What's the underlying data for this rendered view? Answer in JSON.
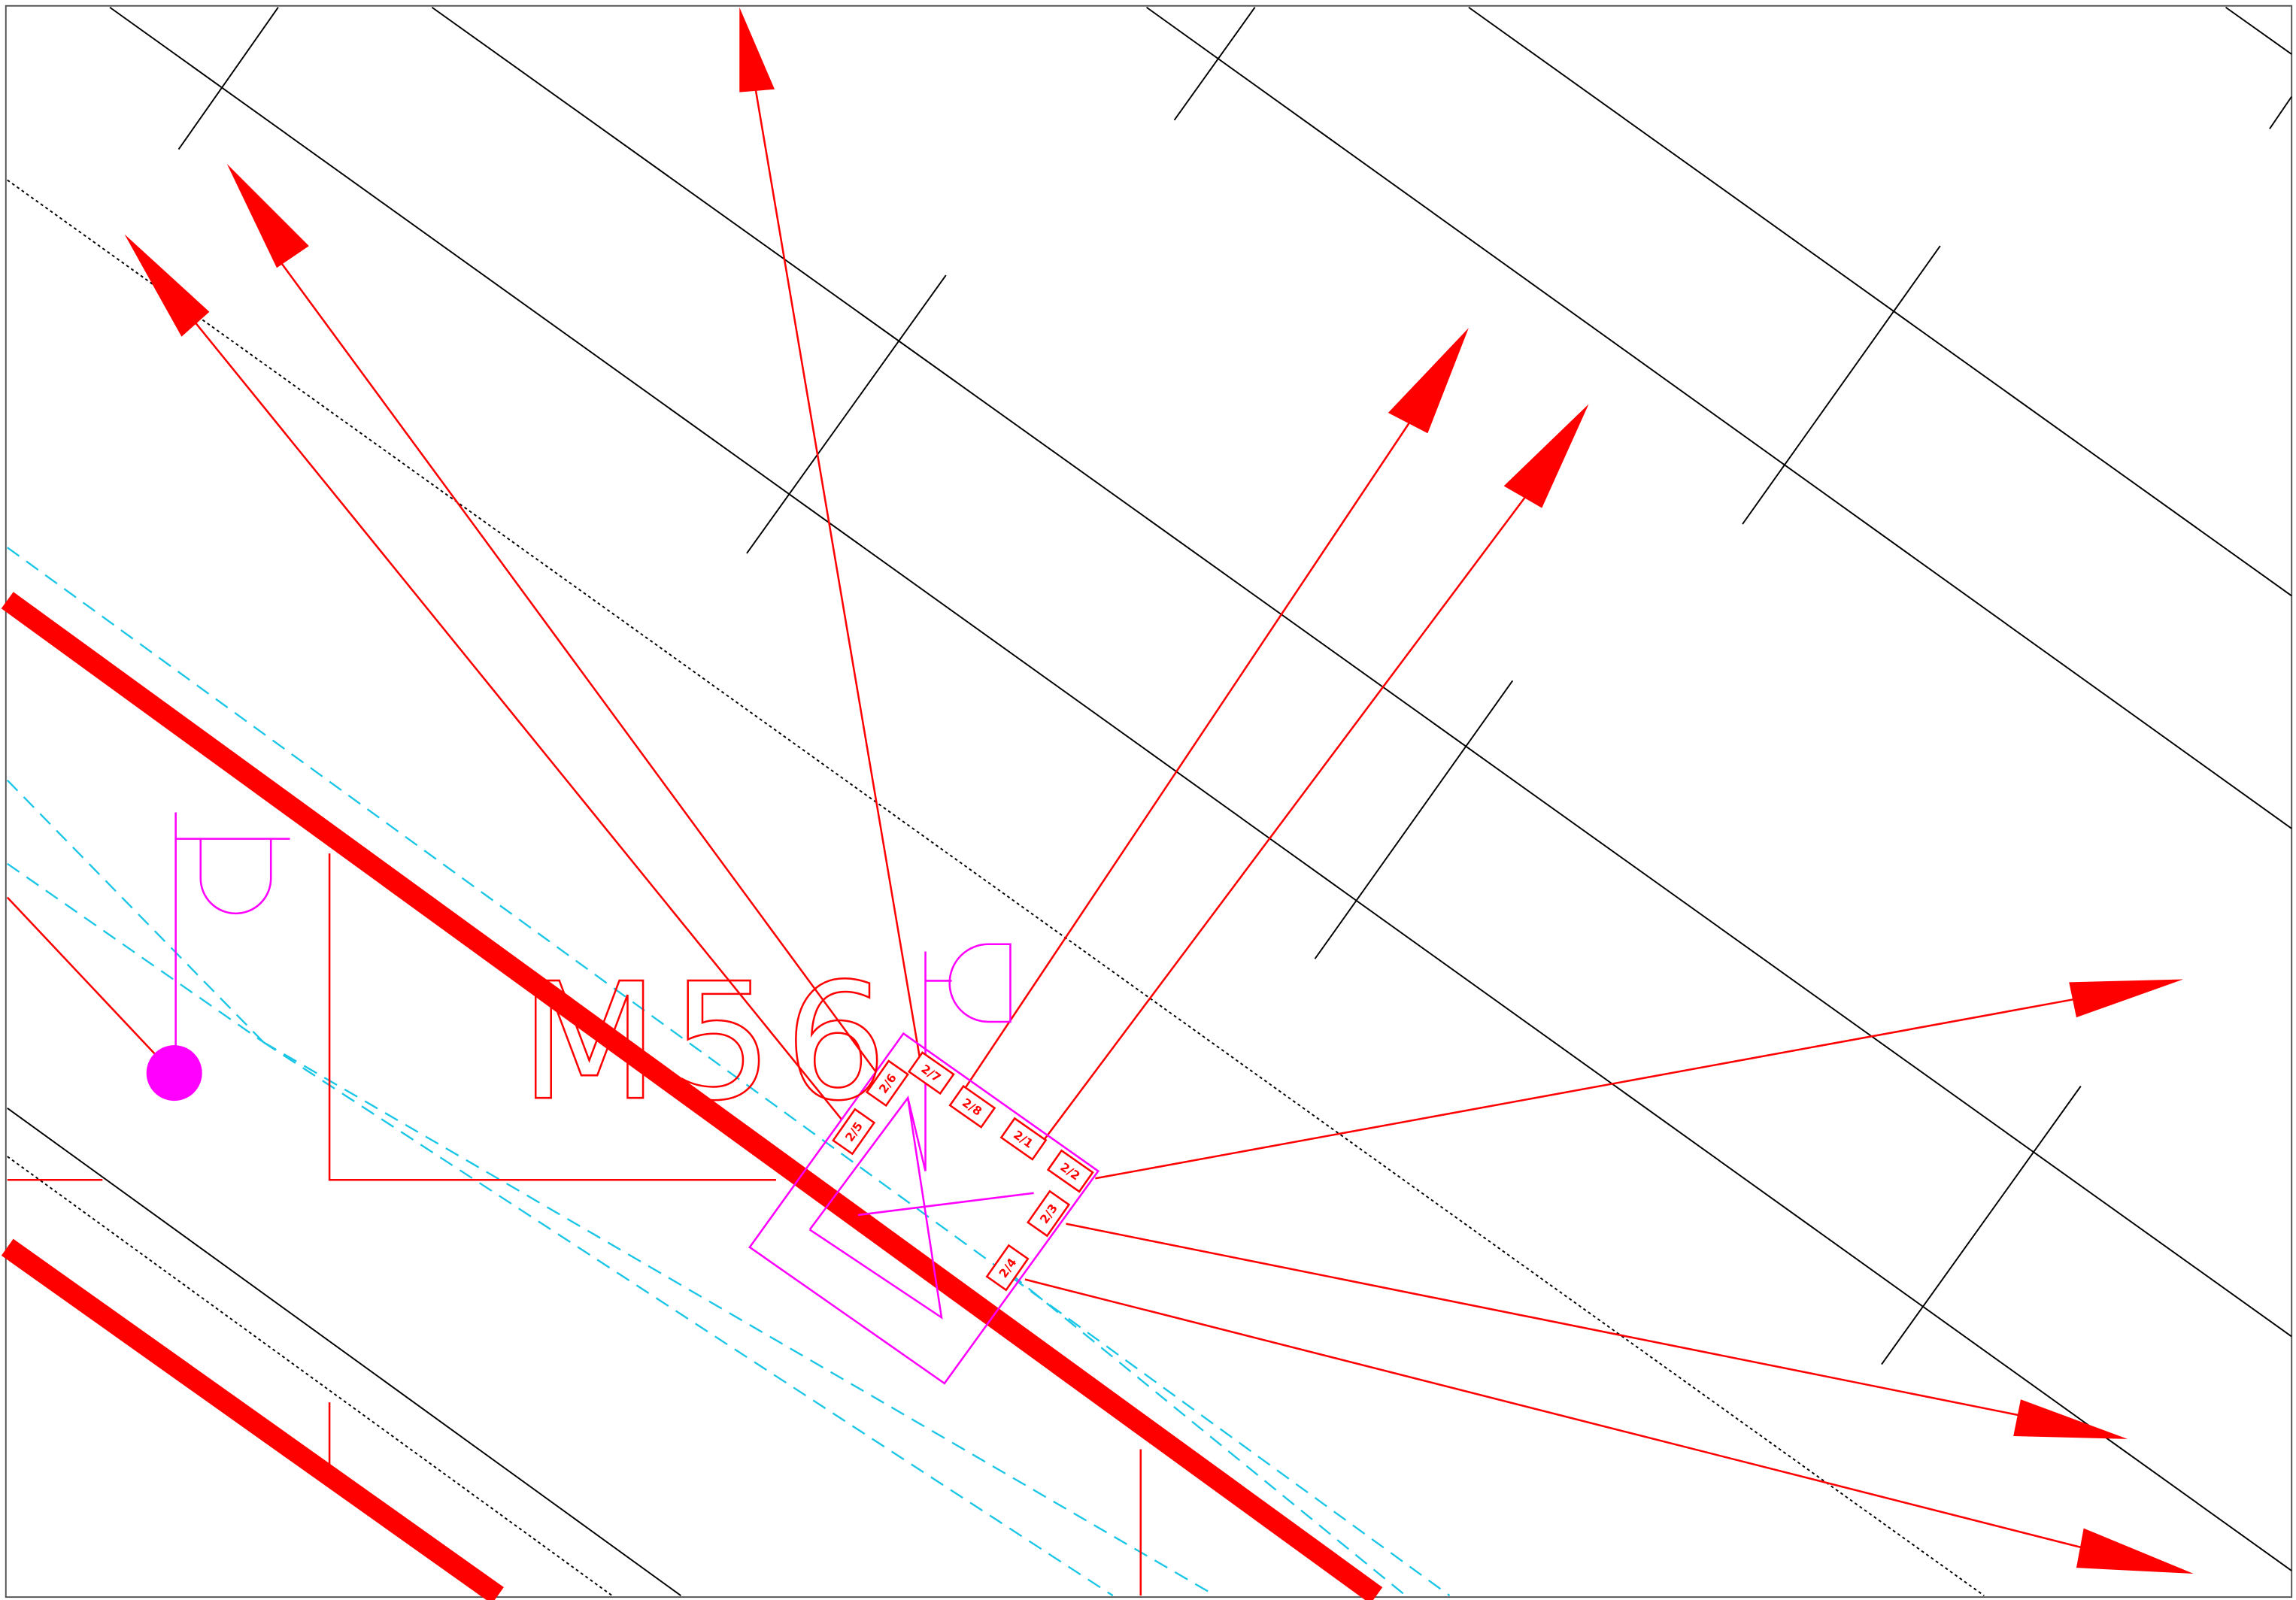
{
  "drawing": {
    "label": "M56",
    "ports": [
      "2/1",
      "2/2",
      "2/3",
      "2/4",
      "2/5",
      "2/6",
      "2/7",
      "2/8"
    ]
  }
}
